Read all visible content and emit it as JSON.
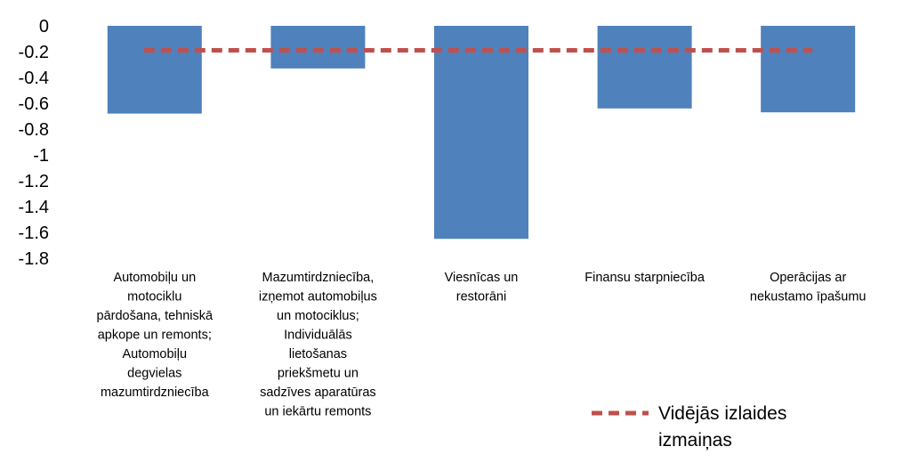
{
  "chart_data": {
    "type": "bar",
    "categories": [
      "Automobiļu un motociklu pārdošana, tehniskā apkope un remonts; Automobiļu degvielas mazumtirdzniecība",
      "Mazumtirdzniecība, izņemot automobiļus un motociklus; Individuālās lietošanas priekšmetu un sadzīves aparatūras un iekārtu remonts",
      "Viesnīcas un restorāni",
      "Finansu starpniecība",
      "Operācijas ar nekustamo īpašumu"
    ],
    "category_lines": [
      [
        "Automobiļu un",
        "motociklu",
        "pārdošana, tehniskā",
        "apkope un remonts;",
        "Automobiļu",
        "degvielas",
        "mazumtirdzniecība"
      ],
      [
        "Mazumtirdzniecība,",
        "izņemot automobiļus",
        "un motociklus;",
        "Individuālās",
        "lietošanas",
        "priekšmetu un",
        "sadzīves aparatūras",
        "un iekārtu remonts"
      ],
      [
        "Viesnīcas  un",
        "restorāni"
      ],
      [
        "Finansu starpniecība"
      ],
      [
        "Operācijas ar",
        "nekustamo īpašumu"
      ]
    ],
    "values": [
      -0.68,
      -0.33,
      -1.65,
      -0.64,
      -0.67
    ],
    "average_line": {
      "name": "Vidējās izlaides izmaiņas",
      "value": -0.19,
      "color": "#c0504d"
    },
    "ylim": [
      -1.8,
      0
    ],
    "yticks": [
      "0",
      "-0.2",
      "-0.4",
      "-0.6",
      "-0.8",
      "-1",
      "-1.2",
      "-1.4",
      "-1.6",
      "-1.8"
    ],
    "ytick_values": [
      0,
      -0.2,
      -0.4,
      -0.6,
      -0.8,
      -1,
      -1.2,
      -1.4,
      -1.6,
      -1.8
    ],
    "bar_color": "#4f81bd",
    "grid": false,
    "legend_position": "bottom-right",
    "legend_lines": [
      "Vidējās izlaides",
      "izmaiņas"
    ]
  }
}
